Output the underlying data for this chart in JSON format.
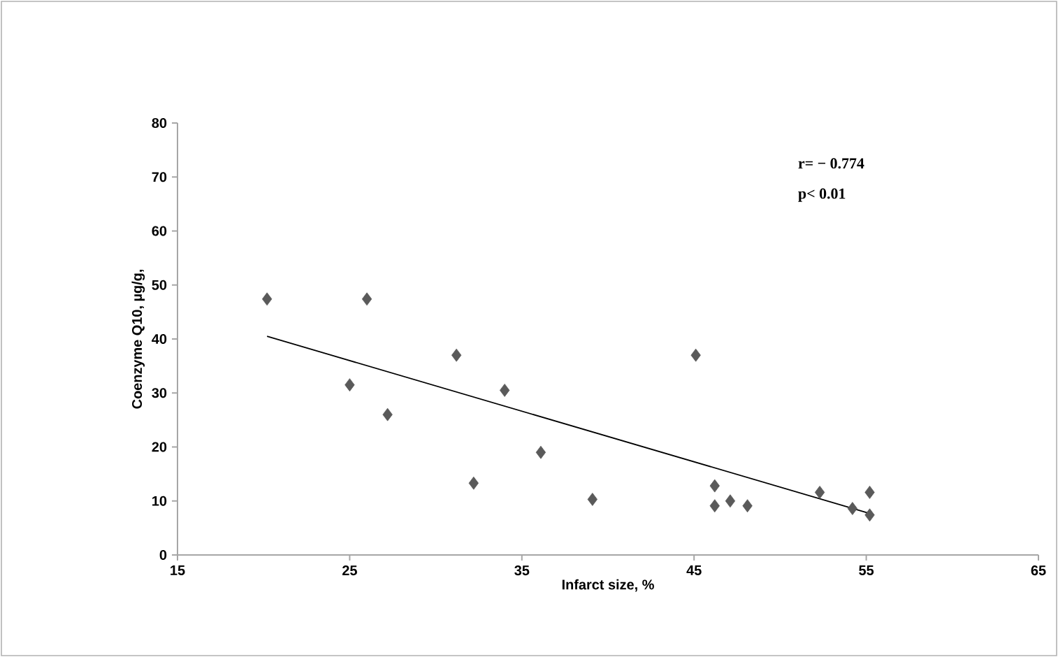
{
  "chart_data": {
    "type": "scatter",
    "xlabel": "Infarct size, %",
    "ylabel": "Coenzyme Q10, µg/g,",
    "annotations": [
      "r= − 0.774",
      "p< 0.01"
    ],
    "xlim": [
      15,
      65
    ],
    "xticks": [
      15,
      25,
      35,
      45,
      55,
      65
    ],
    "ylim": [
      0,
      80
    ],
    "yticks": [
      0,
      10,
      20,
      30,
      40,
      50,
      60,
      70,
      80
    ],
    "grid": false,
    "marker": "diamond",
    "series": [
      {
        "color": "#5a5a5a",
        "x": [
          20.2,
          26,
          25,
          27.2,
          31.2,
          32.2,
          34,
          36.1,
          39.1,
          45.1,
          46.2,
          46.2,
          47.1,
          48.1,
          52.3,
          54.2,
          55.2,
          55.2
        ],
        "values": [
          47.4,
          47.4,
          31.5,
          26,
          37,
          13.3,
          30.5,
          19,
          10.3,
          37,
          12.8,
          9.1,
          10,
          9.1,
          11.6,
          8.6,
          11.6,
          7.4
        ]
      },
      {
        "type": "line",
        "color": "#000000",
        "line_style": "solid",
        "marker": "none",
        "x": [
          20.2,
          55.2
        ],
        "values": [
          40.5,
          7.7
        ]
      }
    ]
  }
}
